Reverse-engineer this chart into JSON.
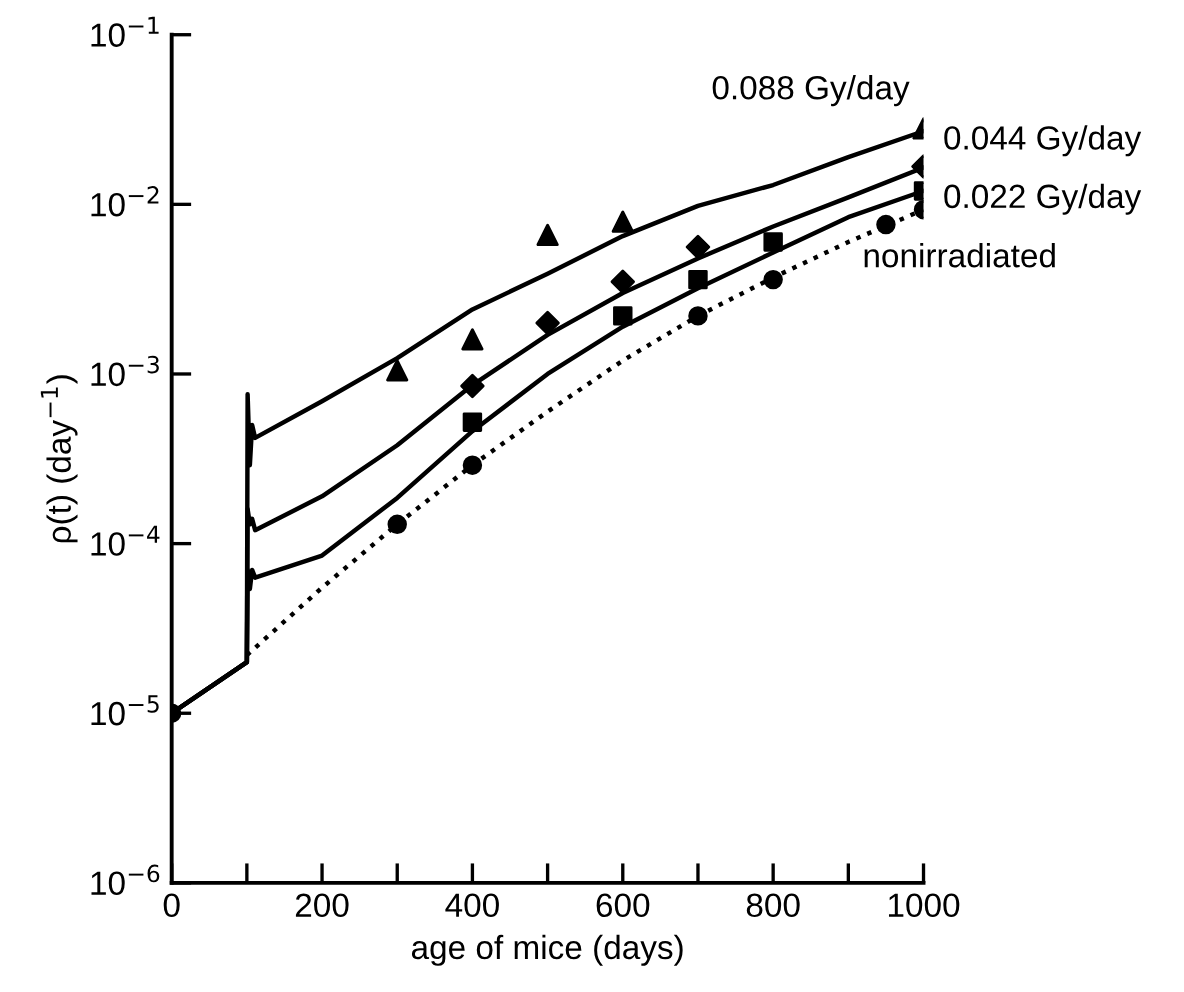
{
  "chart_data": {
    "type": "line",
    "xlabel": "age of mice (days)",
    "ylabel": "ρ(t) (day$^{−1}$)",
    "log": "y",
    "xlim": [
      0,
      1000
    ],
    "ylim": [
      1e-06,
      0.1
    ],
    "xticks": [
      0,
      {
        "value": 100,
        "label": null
      },
      200,
      {
        "value": 300,
        "label": null
      },
      400,
      {
        "value": 500,
        "label": null
      },
      600,
      {
        "value": 700,
        "label": null
      },
      800,
      {
        "value": 900,
        "label": null
      },
      1000
    ],
    "yticks": [
      {
        "value": 1e-06,
        "label": "10$^{−6}$"
      },
      {
        "value": 1e-05,
        "label": "10$^{−5}$"
      },
      {
        "value": 0.0001,
        "label": "10$^{−4}$"
      },
      {
        "value": 0.001,
        "label": "10$^{−3}$"
      },
      {
        "value": 0.01,
        "label": "10$^{−2}$"
      },
      {
        "value": 0.1,
        "label": "10$^{−1}$"
      }
    ],
    "grid": false,
    "legend": false,
    "series": [
      {
        "name": "0.088 Gy/day",
        "color": "#000000",
        "line_style": "solid",
        "marker": "none",
        "x": [
          0,
          100,
          101,
          104,
          107,
          111,
          200,
          300,
          400,
          500,
          600,
          700,
          800,
          900,
          1000
        ],
        "values": [
          1e-05,
          2e-05,
          0.00076,
          0.00029,
          0.0005,
          0.00042,
          0.00069,
          0.00124,
          0.0024,
          0.0039,
          0.0065,
          0.0098,
          0.013,
          0.019,
          0.027
        ]
      },
      {
        "name": "0.044 Gy/day",
        "color": "#000000",
        "line_style": "solid",
        "marker": "none",
        "x": [
          0,
          100,
          101,
          104,
          107,
          111,
          200,
          300,
          400,
          500,
          600,
          700,
          800,
          900,
          1000
        ],
        "values": [
          1e-05,
          2e-05,
          0.00016,
          0.00013,
          0.00014,
          0.00012,
          0.00019,
          0.00038,
          0.00086,
          0.0017,
          0.003,
          0.0048,
          0.0074,
          0.011,
          0.0165
        ]
      },
      {
        "name": "0.022 Gy/day",
        "color": "#000000",
        "line_style": "solid",
        "marker": "none",
        "x": [
          0,
          100,
          101,
          104,
          107,
          111,
          200,
          300,
          400,
          500,
          600,
          700,
          800,
          900,
          1000
        ],
        "values": [
          1e-05,
          2e-05,
          7e-05,
          5.4e-05,
          7e-05,
          6.3e-05,
          8.5e-05,
          0.000186,
          0.00046,
          0.001,
          0.0019,
          0.0032,
          0.0052,
          0.0084,
          0.012
        ]
      },
      {
        "name": "nonirradiated",
        "color": "#000000",
        "line_style": "dotted",
        "marker": "none",
        "x": [
          100,
          200,
          300,
          400,
          500,
          600,
          700,
          800,
          900,
          1000
        ],
        "values": [
          2.2e-05,
          5.5e-05,
          0.00013,
          0.00029,
          0.0006,
          0.0012,
          0.0022,
          0.0037,
          0.006,
          0.0093
        ]
      },
      {
        "type": "scatter",
        "color": "#000000",
        "marker": "triangle",
        "x": [
          300,
          400,
          500,
          600,
          1000
        ],
        "values": [
          0.00105,
          0.0016,
          0.0066,
          0.0079,
          0.028
        ]
      },
      {
        "type": "scatter",
        "color": "#000000",
        "marker": "diamond",
        "x": [
          400,
          500,
          600,
          700,
          1000
        ],
        "values": [
          0.00085,
          0.002,
          0.0035,
          0.0056,
          0.0167
        ]
      },
      {
        "type": "scatter",
        "color": "#000000",
        "marker": "square",
        "x": [
          400,
          600,
          700,
          800,
          1000
        ],
        "values": [
          0.00052,
          0.0022,
          0.0036,
          0.006,
          0.012
        ]
      },
      {
        "type": "scatter",
        "color": "#000000",
        "marker": "circle",
        "x": [
          0,
          300,
          400,
          700,
          800,
          950,
          1000
        ],
        "values": [
          1e-05,
          0.00013,
          0.00029,
          0.0022,
          0.0036,
          0.0076,
          0.0093
        ]
      }
    ]
  }
}
